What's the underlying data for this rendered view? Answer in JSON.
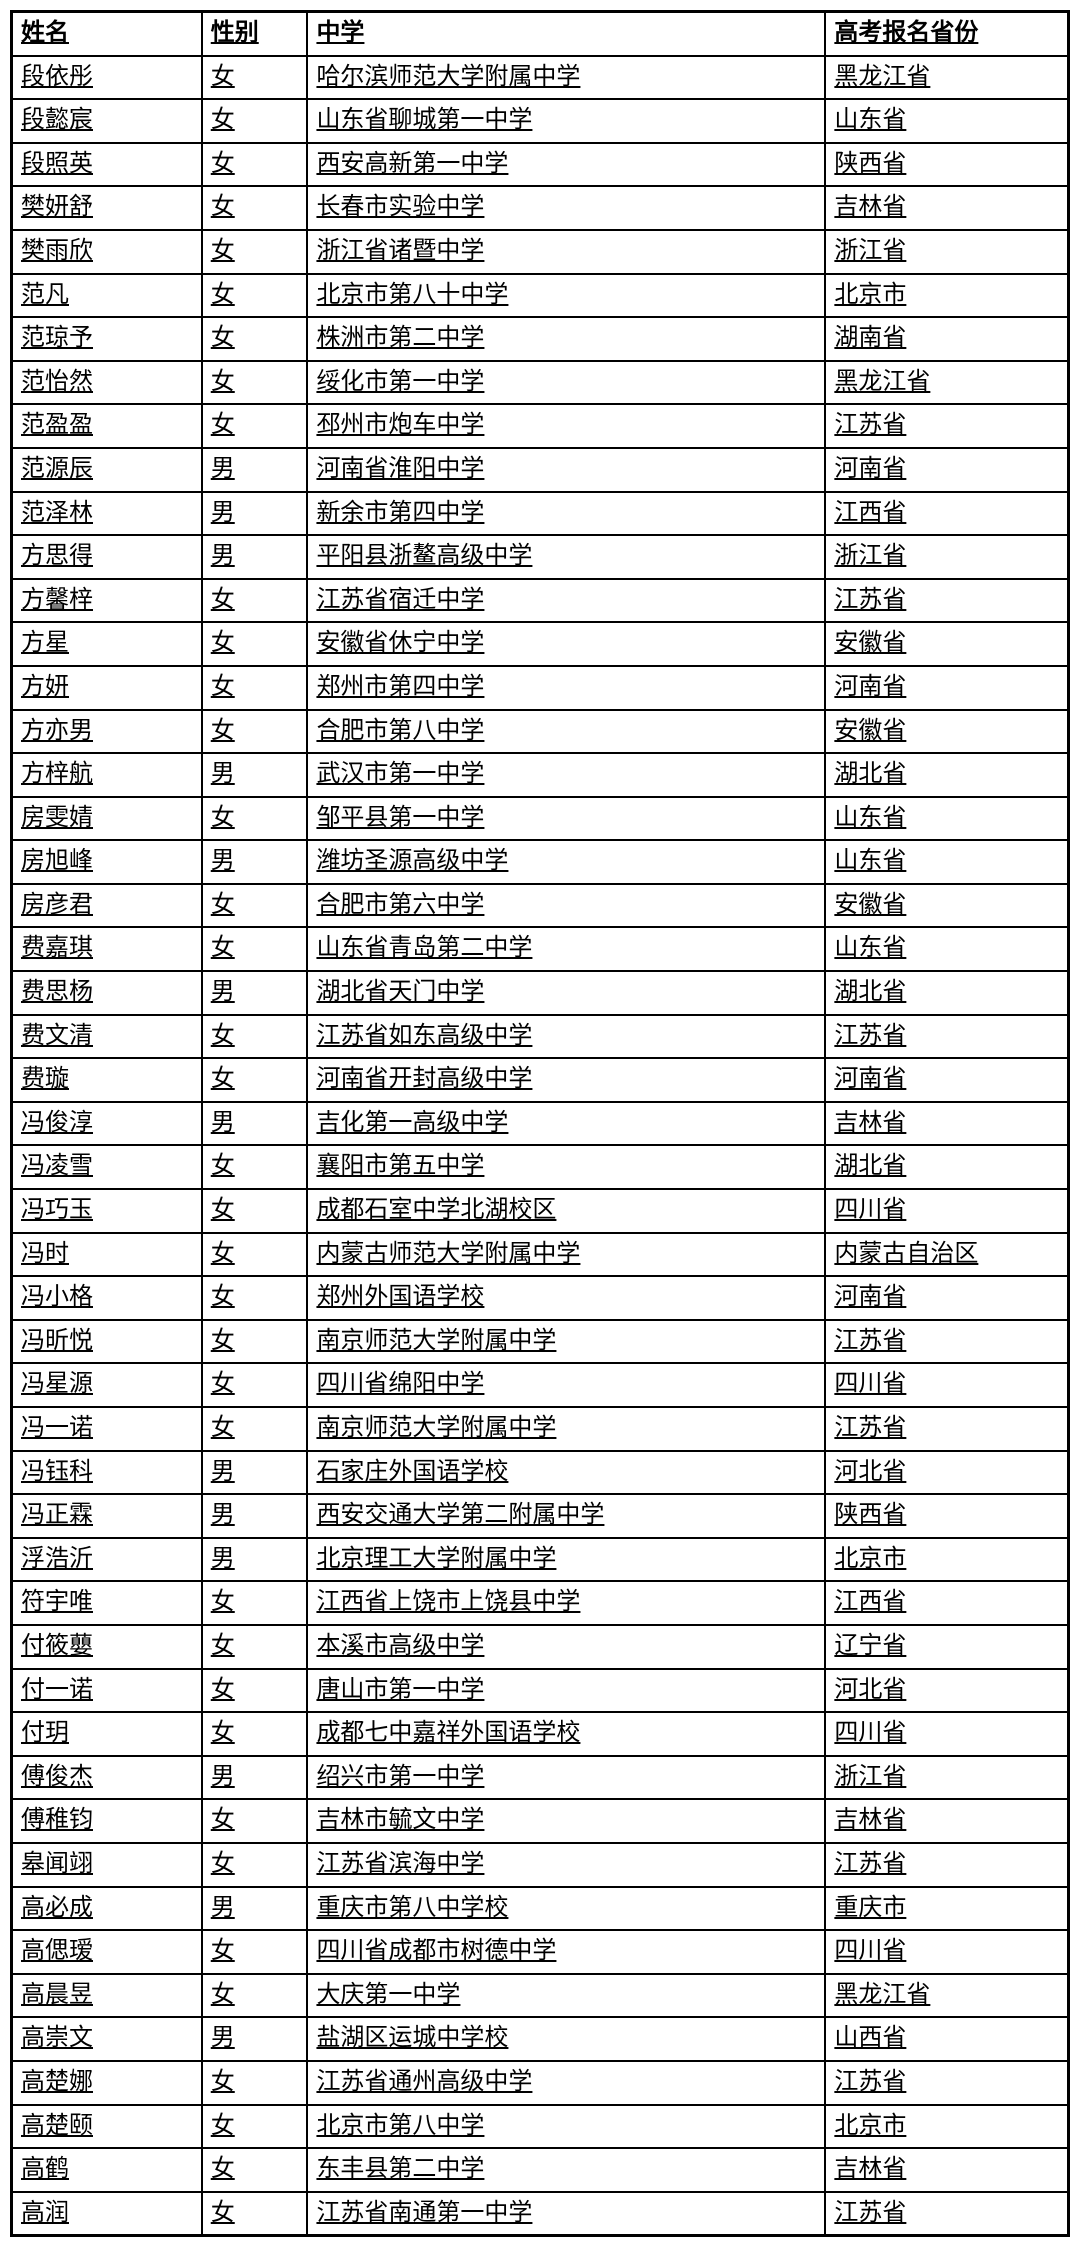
{
  "table": {
    "columns": [
      "姓名",
      "性别",
      "中学",
      "高考报名省份"
    ],
    "rows": [
      [
        "段依彤",
        "女",
        "哈尔滨师范大学附属中学",
        "黑龙江省"
      ],
      [
        "段懿宸",
        "女",
        "山东省聊城第一中学",
        "山东省"
      ],
      [
        "段照英",
        "女",
        "西安高新第一中学",
        "陕西省"
      ],
      [
        "樊妍舒",
        "女",
        "长春市实验中学",
        "吉林省"
      ],
      [
        "樊雨欣",
        "女",
        "浙江省诸暨中学",
        "浙江省"
      ],
      [
        "范凡",
        "女",
        "北京市第八十中学",
        "北京市"
      ],
      [
        "范琼予",
        "女",
        "株洲市第二中学",
        "湖南省"
      ],
      [
        "范怡然",
        "女",
        "绥化市第一中学",
        "黑龙江省"
      ],
      [
        "范盈盈",
        "女",
        "邳州市炮车中学",
        "江苏省"
      ],
      [
        "范源辰",
        "男",
        "河南省淮阳中学",
        "河南省"
      ],
      [
        "范泽林",
        "男",
        "新余市第四中学",
        "江西省"
      ],
      [
        "方思得",
        "男",
        "平阳县浙鳌高级中学",
        "浙江省"
      ],
      [
        "方馨梓",
        "女",
        "江苏省宿迁中学",
        "江苏省"
      ],
      [
        "方星",
        "女",
        "安徽省休宁中学",
        "安徽省"
      ],
      [
        "方妍",
        "女",
        "郑州市第四中学",
        "河南省"
      ],
      [
        "方亦男",
        "女",
        "合肥市第八中学",
        "安徽省"
      ],
      [
        "方梓航",
        "男",
        "武汉市第一中学",
        "湖北省"
      ],
      [
        "房雯婧",
        "女",
        "邹平县第一中学",
        "山东省"
      ],
      [
        "房旭峰",
        "男",
        "潍坊圣源高级中学",
        "山东省"
      ],
      [
        "房彦君",
        "女",
        "合肥市第六中学",
        "安徽省"
      ],
      [
        "费嘉琪",
        "女",
        "山东省青岛第二中学",
        "山东省"
      ],
      [
        "费思杨",
        "男",
        "湖北省天门中学",
        "湖北省"
      ],
      [
        "费文清",
        "女",
        "江苏省如东高级中学",
        "江苏省"
      ],
      [
        "费璇",
        "女",
        "河南省开封高级中学",
        "河南省"
      ],
      [
        "冯俊淳",
        "男",
        "吉化第一高级中学",
        "吉林省"
      ],
      [
        "冯凌雪",
        "女",
        "襄阳市第五中学",
        "湖北省"
      ],
      [
        "冯巧玉",
        "女",
        "成都石室中学北湖校区",
        "四川省"
      ],
      [
        "冯时",
        "女",
        "内蒙古师范大学附属中学",
        "内蒙古自治区"
      ],
      [
        "冯小格",
        "女",
        "郑州外国语学校",
        "河南省"
      ],
      [
        "冯昕悦",
        "女",
        "南京师范大学附属中学",
        "江苏省"
      ],
      [
        "冯星源",
        "女",
        "四川省绵阳中学",
        "四川省"
      ],
      [
        "冯一诺",
        "女",
        "南京师范大学附属中学",
        "江苏省"
      ],
      [
        "冯钰科",
        "男",
        "石家庄外国语学校",
        "河北省"
      ],
      [
        "冯正霖",
        "男",
        "西安交通大学第二附属中学",
        "陕西省"
      ],
      [
        "浮浩沂",
        "男",
        "北京理工大学附属中学",
        "北京市"
      ],
      [
        "符宇唯",
        "女",
        "江西省上饶市上饶县中学",
        "江西省"
      ],
      [
        "付筱蘡",
        "女",
        "本溪市高级中学",
        "辽宁省"
      ],
      [
        "付一诺",
        "女",
        "唐山市第一中学",
        "河北省"
      ],
      [
        "付玥",
        "女",
        "成都七中嘉祥外国语学校",
        "四川省"
      ],
      [
        "傅俊杰",
        "男",
        "绍兴市第一中学",
        "浙江省"
      ],
      [
        "傅稚钧",
        "女",
        "吉林市毓文中学",
        "吉林省"
      ],
      [
        "皋闻翊",
        "女",
        "江苏省滨海中学",
        "江苏省"
      ],
      [
        "高必成",
        "男",
        "重庆市第八中学校",
        "重庆市"
      ],
      [
        "高偲瑷",
        "女",
        "四川省成都市树德中学",
        "四川省"
      ],
      [
        "高晨昱",
        "女",
        "大庆第一中学",
        "黑龙江省"
      ],
      [
        "高崇文",
        "男",
        "盐湖区运城中学校",
        "山西省"
      ],
      [
        "高楚娜",
        "女",
        "江苏省通州高级中学",
        "江苏省"
      ],
      [
        "高楚颐",
        "女",
        "北京市第八中学",
        "北京市"
      ],
      [
        "高鹤",
        "女",
        "东丰县第二中学",
        "吉林省"
      ],
      [
        "高润",
        "女",
        "江苏省南通第一中学",
        "江苏省"
      ]
    ]
  },
  "styling": {
    "border_color": "#000000",
    "background_color": "#ffffff",
    "font_family": "SimSun",
    "font_size": 24,
    "header_font_weight": "bold",
    "text_decoration": "underline",
    "column_widths": [
      "18%",
      "10%",
      "49%",
      "23%"
    ]
  }
}
